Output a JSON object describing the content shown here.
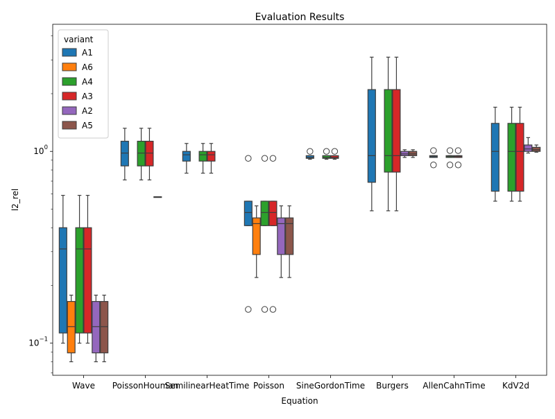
{
  "chart_data": {
    "type": "box",
    "title": "Evaluation Results",
    "xlabel": "Equation",
    "ylabel": "l2_rel",
    "yscale": "log",
    "ylim": [
      0.068,
      4.6
    ],
    "yticks": [
      {
        "value": 0.1,
        "base": "10",
        "exp": "−1"
      },
      {
        "value": 1,
        "base": "10",
        "exp": "0"
      }
    ],
    "legend": {
      "title": "variant",
      "position": "top-left"
    },
    "grid": false,
    "categories": [
      "Wave",
      "PoissonHouman",
      "SemilinearHeatTime",
      "Poisson",
      "SineGordonTime",
      "Burgers",
      "AllenCahnTime",
      "KdV2d"
    ],
    "series": [
      {
        "name": "A1",
        "color": "#1f77b4",
        "boxes": [
          {
            "whislo": 0.1,
            "q1": 0.113,
            "med": 0.31,
            "q3": 0.4,
            "whishi": 0.59,
            "fliers": []
          },
          {
            "whislo": 0.71,
            "q1": 0.84,
            "med": 0.98,
            "q3": 1.13,
            "whishi": 1.32,
            "fliers": []
          },
          {
            "whislo": 0.77,
            "q1": 0.89,
            "med": 0.96,
            "q3": 1.0,
            "whishi": 1.1,
            "fliers": []
          },
          {
            "whislo": 0.41,
            "q1": 0.41,
            "med": 0.48,
            "q3": 0.55,
            "whishi": 0.55,
            "fliers": [
              0.92,
              0.15
            ]
          },
          {
            "whislo": 0.91,
            "q1": 0.92,
            "med": 0.93,
            "q3": 0.95,
            "whishi": 0.95,
            "fliers": [
              1.0
            ]
          },
          {
            "whislo": 0.49,
            "q1": 0.69,
            "med": 0.95,
            "q3": 2.1,
            "whishi": 3.1,
            "fliers": []
          },
          {
            "whislo": 0.93,
            "q1": 0.93,
            "med": 0.94,
            "q3": 0.95,
            "whishi": 0.95,
            "fliers": [
              1.01,
              0.85
            ]
          },
          {
            "whislo": 0.55,
            "q1": 0.62,
            "med": 1.0,
            "q3": 1.4,
            "whishi": 1.7,
            "fliers": []
          }
        ]
      },
      {
        "name": "A6",
        "color": "#ff7f0e",
        "boxes": [
          {
            "whislo": 0.08,
            "q1": 0.089,
            "med": 0.122,
            "q3": 0.165,
            "whishi": 0.178,
            "fliers": []
          },
          null,
          null,
          {
            "whislo": 0.22,
            "q1": 0.29,
            "med": 0.42,
            "q3": 0.45,
            "whishi": 0.52,
            "fliers": []
          },
          null,
          null,
          null,
          null
        ]
      },
      {
        "name": "A4",
        "color": "#2ca02c",
        "boxes": [
          {
            "whislo": 0.1,
            "q1": 0.113,
            "med": 0.31,
            "q3": 0.4,
            "whishi": 0.59,
            "fliers": []
          },
          {
            "whislo": 0.71,
            "q1": 0.84,
            "med": 0.98,
            "q3": 1.13,
            "whishi": 1.32,
            "fliers": []
          },
          {
            "whislo": 0.77,
            "q1": 0.89,
            "med": 0.96,
            "q3": 1.0,
            "whishi": 1.1,
            "fliers": []
          },
          {
            "whislo": 0.41,
            "q1": 0.41,
            "med": 0.48,
            "q3": 0.55,
            "whishi": 0.55,
            "fliers": [
              0.92,
              0.15
            ]
          },
          {
            "whislo": 0.91,
            "q1": 0.92,
            "med": 0.93,
            "q3": 0.95,
            "whishi": 0.95,
            "fliers": [
              1.0
            ]
          },
          {
            "whislo": 0.49,
            "q1": 0.78,
            "med": 0.95,
            "q3": 2.1,
            "whishi": 3.1,
            "fliers": []
          },
          {
            "whislo": 0.93,
            "q1": 0.93,
            "med": 0.94,
            "q3": 0.95,
            "whishi": 0.95,
            "fliers": [
              1.01,
              0.85
            ]
          },
          {
            "whislo": 0.55,
            "q1": 0.62,
            "med": 1.0,
            "q3": 1.4,
            "whishi": 1.7,
            "fliers": []
          }
        ]
      },
      {
        "name": "A3",
        "color": "#d62728",
        "boxes": [
          {
            "whislo": 0.1,
            "q1": 0.113,
            "med": 0.31,
            "q3": 0.4,
            "whishi": 0.59,
            "fliers": []
          },
          {
            "whislo": 0.71,
            "q1": 0.84,
            "med": 0.98,
            "q3": 1.13,
            "whishi": 1.32,
            "fliers": []
          },
          {
            "whislo": 0.77,
            "q1": 0.89,
            "med": 0.96,
            "q3": 1.0,
            "whishi": 1.1,
            "fliers": []
          },
          {
            "whislo": 0.41,
            "q1": 0.41,
            "med": 0.48,
            "q3": 0.55,
            "whishi": 0.55,
            "fliers": [
              0.92,
              0.15
            ]
          },
          {
            "whislo": 0.91,
            "q1": 0.92,
            "med": 0.93,
            "q3": 0.95,
            "whishi": 0.95,
            "fliers": [
              1.0
            ]
          },
          {
            "whislo": 0.49,
            "q1": 0.78,
            "med": 0.95,
            "q3": 2.1,
            "whishi": 3.1,
            "fliers": []
          },
          {
            "whislo": 0.93,
            "q1": 0.93,
            "med": 0.94,
            "q3": 0.95,
            "whishi": 0.95,
            "fliers": [
              1.01,
              0.85
            ]
          },
          {
            "whislo": 0.55,
            "q1": 0.62,
            "med": 1.0,
            "q3": 1.4,
            "whishi": 1.7,
            "fliers": []
          }
        ]
      },
      {
        "name": "A2",
        "color": "#9467bd",
        "boxes": [
          {
            "whislo": 0.08,
            "q1": 0.089,
            "med": 0.122,
            "q3": 0.165,
            "whishi": 0.178,
            "fliers": []
          },
          {
            "whislo": 0.58,
            "q1": 0.58,
            "med": 0.58,
            "q3": 0.58,
            "whishi": 0.58,
            "fliers": []
          },
          null,
          {
            "whislo": 0.22,
            "q1": 0.29,
            "med": 0.42,
            "q3": 0.45,
            "whishi": 0.52,
            "fliers": []
          },
          null,
          {
            "whislo": 0.93,
            "q1": 0.95,
            "med": 0.97,
            "q3": 1.0,
            "whishi": 1.02,
            "fliers": []
          },
          null,
          {
            "whislo": 0.98,
            "q1": 1.0,
            "med": 1.03,
            "q3": 1.08,
            "whishi": 1.18,
            "fliers": []
          }
        ]
      },
      {
        "name": "A5",
        "color": "#8c564b",
        "boxes": [
          {
            "whislo": 0.08,
            "q1": 0.089,
            "med": 0.122,
            "q3": 0.165,
            "whishi": 0.178,
            "fliers": []
          },
          null,
          null,
          {
            "whislo": 0.22,
            "q1": 0.29,
            "med": 0.42,
            "q3": 0.45,
            "whishi": 0.52,
            "fliers": []
          },
          null,
          {
            "whislo": 0.93,
            "q1": 0.95,
            "med": 0.97,
            "q3": 1.0,
            "whishi": 1.02,
            "fliers": []
          },
          null,
          {
            "whislo": 0.99,
            "q1": 1.0,
            "med": 1.02,
            "q3": 1.05,
            "whishi": 1.08,
            "fliers": []
          }
        ]
      }
    ]
  }
}
